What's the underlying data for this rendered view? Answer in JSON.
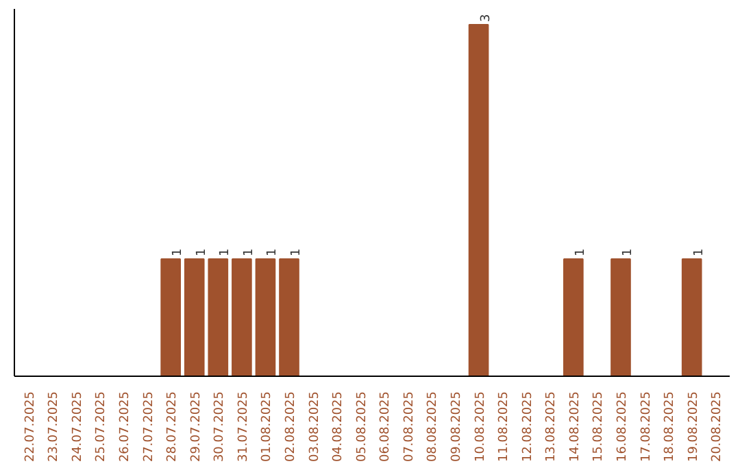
{
  "chart_data": {
    "type": "bar",
    "categories": [
      "22.07.2025",
      "23.07.2025",
      "24.07.2025",
      "25.07.2025",
      "26.07.2025",
      "27.07.2025",
      "28.07.2025",
      "29.07.2025",
      "30.07.2025",
      "31.07.2025",
      "01.08.2025",
      "02.08.2025",
      "03.08.2025",
      "04.08.2025",
      "05.08.2025",
      "06.08.2025",
      "07.08.2025",
      "08.08.2025",
      "09.08.2025",
      "10.08.2025",
      "11.08.2025",
      "12.08.2025",
      "13.08.2025",
      "14.08.2025",
      "15.08.2025",
      "16.08.2025",
      "17.08.2025",
      "18.08.2025",
      "19.08.2025",
      "20.08.2025"
    ],
    "values": [
      0,
      0,
      0,
      0,
      0,
      0,
      1,
      1,
      1,
      1,
      1,
      1,
      0,
      0,
      0,
      0,
      0,
      0,
      0,
      3,
      0,
      0,
      0,
      1,
      0,
      1,
      0,
      0,
      1,
      0
    ],
    "value_labels": [
      null,
      null,
      null,
      null,
      null,
      null,
      "1",
      "1",
      "1",
      "1",
      "1",
      "1",
      null,
      null,
      null,
      null,
      null,
      null,
      null,
      "3",
      null,
      null,
      null,
      "1",
      null,
      "1",
      null,
      null,
      "1",
      null
    ],
    "color": "#a0522d",
    "grid": false,
    "tick_labels": "x"
  }
}
